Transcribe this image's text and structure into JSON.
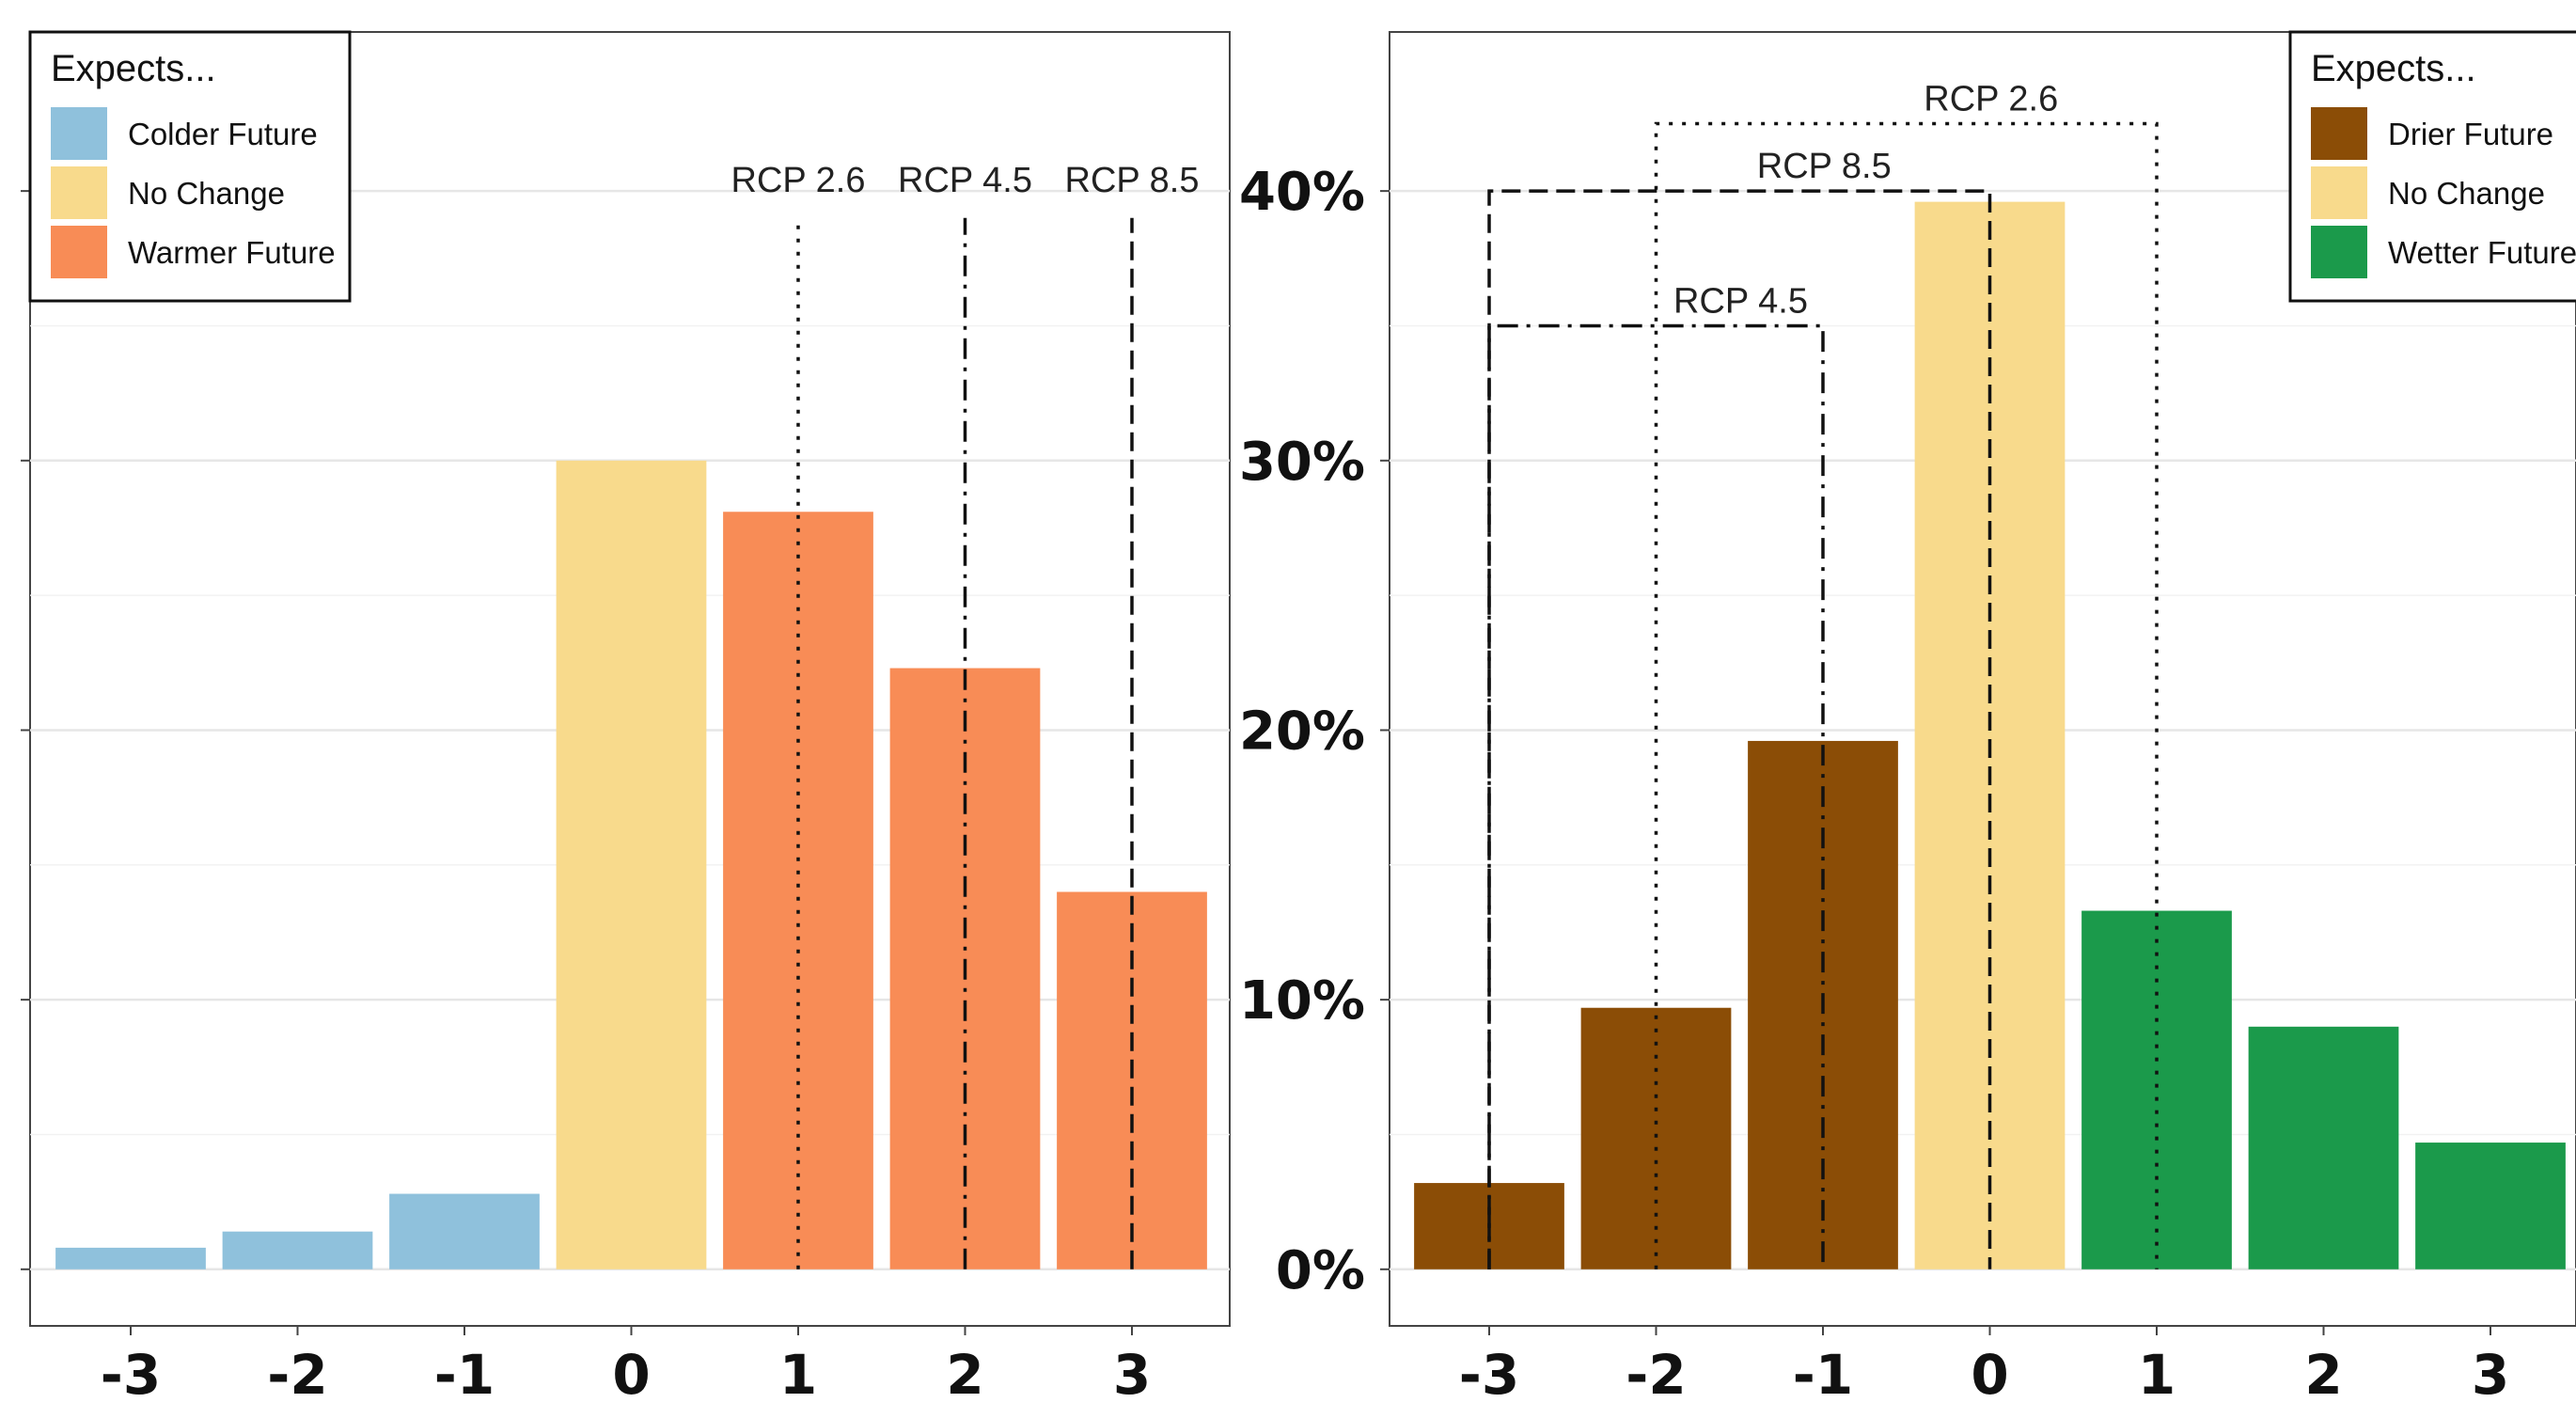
{
  "chart_data": [
    {
      "type": "bar",
      "title": "",
      "xlabel": "",
      "ylabel": "",
      "x": [
        -3,
        -2,
        -1,
        0,
        1,
        2,
        3
      ],
      "x_labels": [
        "-3",
        "-2",
        "-1",
        "0",
        "1",
        "2",
        "3"
      ],
      "values": [
        0.8,
        1.4,
        2.8,
        30.0,
        28.1,
        22.3,
        14.0
      ],
      "categories": [
        "Colder Future",
        "Colder Future",
        "Colder Future",
        "No Change",
        "Warmer Future",
        "Warmer Future",
        "Warmer Future"
      ],
      "ylim": [
        -2.1,
        45.9
      ],
      "y_ticks": [
        0,
        10,
        20,
        30,
        40
      ],
      "y_tick_labels_shown": false,
      "grid": true,
      "legend": {
        "title": "Expects...",
        "placement": "top-left",
        "items": [
          {
            "label": "Colder Future",
            "color": "#8fc1dc"
          },
          {
            "label": "No Change",
            "color": "#f8da8c"
          },
          {
            "label": "Warmer Future",
            "color": "#f88c56"
          }
        ]
      },
      "reference_lines": [
        {
          "label": "RCP 2.6",
          "x": 1,
          "style": "dotted",
          "top": 39
        },
        {
          "label": "RCP 4.5",
          "x": 2,
          "style": "dashdot",
          "top": 39
        },
        {
          "label": "RCP 8.5",
          "x": 3,
          "style": "dashed",
          "top": 39
        }
      ]
    },
    {
      "type": "bar",
      "title": "",
      "xlabel": "",
      "ylabel": "",
      "x": [
        -3,
        -2,
        -1,
        0,
        1,
        2,
        3
      ],
      "x_labels": [
        "-3",
        "-2",
        "-1",
        "0",
        "1",
        "2",
        "3"
      ],
      "values": [
        3.2,
        9.7,
        19.6,
        39.6,
        13.3,
        9.0,
        4.7
      ],
      "categories": [
        "Drier Future",
        "Drier Future",
        "Drier Future",
        "No Change",
        "Wetter Future",
        "Wetter Future",
        "Wetter Future"
      ],
      "ylim": [
        -2.1,
        45.9
      ],
      "y_ticks": [
        0,
        10,
        20,
        30,
        40
      ],
      "y_tick_labels": [
        "0%",
        "10%",
        "20%",
        "30%",
        "40%"
      ],
      "grid": true,
      "legend": {
        "title": "Expects...",
        "placement": "top-right",
        "items": [
          {
            "label": "Drier Future",
            "color": "#8b4d06"
          },
          {
            "label": "No Change",
            "color": "#f8da8c"
          },
          {
            "label": "Wetter Future",
            "color": "#1b9a4b"
          }
        ]
      },
      "reference_brackets": [
        {
          "label": "RCP 2.6",
          "from": -2,
          "to": 1,
          "level": 42.5,
          "style": "dotted"
        },
        {
          "label": "RCP 8.5",
          "from": -3,
          "to": 0,
          "level": 40.0,
          "style": "dashed"
        },
        {
          "label": "RCP 4.5",
          "from": -3,
          "to": -1,
          "level": 35.0,
          "style": "dashdot"
        }
      ]
    }
  ]
}
